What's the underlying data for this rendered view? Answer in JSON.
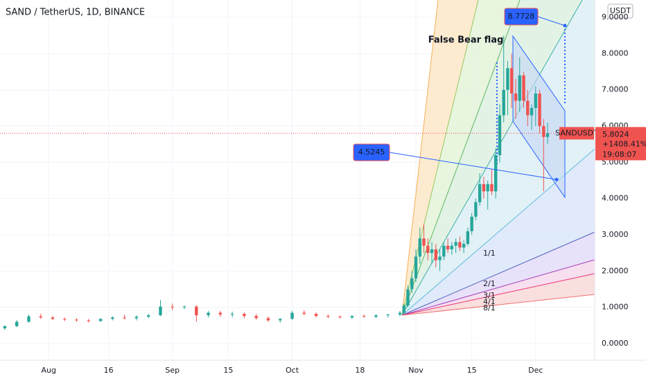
{
  "chart_data": {
    "type": "candlestick",
    "title": "SAND / TetherUS, 1D, BINANCE",
    "currency": "USDT",
    "x": [
      202,
      205,
      208,
      211,
      214,
      217,
      220,
      223,
      226,
      229,
      232,
      235,
      238,
      241,
      244,
      247,
      250,
      253,
      256,
      259,
      262,
      265,
      268,
      271,
      274,
      277,
      280,
      283,
      286,
      289,
      292,
      295,
      298,
      301,
      302,
      303,
      304,
      305,
      306,
      307,
      308,
      309,
      310,
      311,
      312,
      313,
      314,
      315,
      316,
      317,
      318,
      319,
      320,
      321,
      322,
      323,
      324,
      325,
      326,
      327,
      328,
      329,
      330,
      331,
      332,
      333,
      334,
      335,
      336,
      337,
      338
    ],
    "open": [
      0.42,
      0.48,
      0.6,
      0.75,
      0.72,
      0.68,
      0.66,
      0.64,
      0.62,
      0.68,
      0.72,
      0.7,
      0.74,
      0.78,
      1.02,
      1.0,
      1.02,
      0.78,
      0.85,
      0.8,
      0.82,
      0.76,
      0.7,
      0.64,
      0.68,
      0.85,
      0.82,
      0.76,
      0.74,
      0.72,
      0.76,
      0.74,
      0.78,
      0.8,
      0.85,
      1.05,
      1.5,
      1.8,
      2.4,
      2.9,
      2.7,
      2.5,
      2.6,
      2.3,
      2.4,
      2.7,
      2.6,
      2.7,
      2.8,
      2.65,
      2.75,
      3.1,
      3.5,
      3.9,
      4.4,
      4.2,
      4.4,
      4.2,
      5.2,
      6.3,
      7.0,
      7.6,
      6.9,
      6.7,
      7.4,
      6.7,
      6.3,
      6.5,
      6.9,
      6.0,
      5.7
    ],
    "high": [
      0.5,
      0.65,
      0.8,
      0.82,
      0.76,
      0.72,
      0.7,
      0.68,
      0.7,
      0.75,
      0.8,
      0.78,
      0.82,
      1.2,
      1.1,
      1.05,
      1.06,
      0.9,
      0.9,
      0.88,
      0.86,
      0.82,
      0.75,
      0.7,
      0.9,
      0.92,
      0.86,
      0.8,
      0.78,
      0.78,
      0.8,
      0.8,
      0.82,
      0.9,
      1.1,
      1.6,
      2.0,
      2.6,
      3.2,
      3.3,
      2.9,
      2.8,
      2.75,
      2.6,
      2.8,
      2.9,
      2.8,
      2.9,
      2.95,
      2.85,
      3.2,
      3.6,
      4.0,
      4.7,
      4.6,
      4.5,
      4.8,
      5.4,
      6.6,
      8.5,
      7.8,
      8.0,
      7.3,
      7.9,
      7.5,
      7.0,
      6.6,
      7.1,
      7.0,
      6.2,
      6.1
    ],
    "low": [
      0.38,
      0.45,
      0.58,
      0.68,
      0.65,
      0.62,
      0.6,
      0.58,
      0.6,
      0.64,
      0.66,
      0.64,
      0.7,
      0.76,
      0.92,
      0.95,
      0.6,
      0.72,
      0.74,
      0.72,
      0.7,
      0.66,
      0.6,
      0.58,
      0.66,
      0.78,
      0.72,
      0.7,
      0.7,
      0.68,
      0.72,
      0.7,
      0.72,
      0.75,
      0.82,
      1.0,
      1.4,
      1.7,
      2.2,
      2.5,
      2.3,
      2.2,
      2.1,
      2.0,
      2.3,
      2.5,
      2.45,
      2.5,
      2.55,
      2.5,
      2.7,
      3.0,
      3.4,
      3.8,
      4.0,
      3.7,
      4.1,
      4.0,
      5.0,
      6.1,
      6.3,
      6.5,
      6.2,
      6.4,
      6.5,
      6.0,
      5.9,
      6.0,
      5.8,
      4.2,
      5.5
    ],
    "close": [
      0.48,
      0.6,
      0.75,
      0.72,
      0.68,
      0.66,
      0.64,
      0.62,
      0.68,
      0.72,
      0.7,
      0.74,
      0.78,
      1.02,
      1.0,
      1.02,
      0.78,
      0.85,
      0.8,
      0.82,
      0.76,
      0.7,
      0.64,
      0.68,
      0.85,
      0.82,
      0.76,
      0.74,
      0.72,
      0.76,
      0.74,
      0.78,
      0.8,
      0.85,
      1.05,
      1.5,
      1.8,
      2.4,
      2.9,
      2.7,
      2.5,
      2.6,
      2.3,
      2.4,
      2.7,
      2.6,
      2.7,
      2.8,
      2.65,
      2.75,
      3.1,
      3.5,
      3.9,
      4.4,
      4.2,
      4.4,
      4.2,
      5.2,
      6.3,
      7.0,
      7.6,
      6.9,
      6.7,
      7.4,
      6.7,
      6.3,
      6.5,
      6.9,
      6.0,
      5.7,
      5.8024
    ],
    "up_color": "#26a69a",
    "down_color": "#ef5350",
    "xlim": [
      200.8,
      349.8
    ],
    "ylim": [
      -0.46,
      9.48
    ],
    "xticks": [
      {
        "value": 213,
        "label": "Aug"
      },
      {
        "value": 228,
        "label": "16"
      },
      {
        "value": 244,
        "label": "Sep"
      },
      {
        "value": 258,
        "label": "15"
      },
      {
        "value": 274,
        "label": "Oct"
      },
      {
        "value": 291,
        "label": "18"
      },
      {
        "value": 305,
        "label": "Nov"
      },
      {
        "value": 319,
        "label": "15"
      },
      {
        "value": 335,
        "label": "Dec"
      }
    ],
    "yticks": [
      {
        "value": 0,
        "label": "0.0000"
      },
      {
        "value": 1,
        "label": "1.0000"
      },
      {
        "value": 2,
        "label": "2.0000"
      },
      {
        "value": 3,
        "label": "3.0000"
      },
      {
        "value": 4,
        "label": "4.0000"
      },
      {
        "value": 5,
        "label": "5.0000"
      },
      {
        "value": 6,
        "label": "6.0000"
      },
      {
        "value": 7,
        "label": "7.0000"
      },
      {
        "value": 8,
        "label": "8.0000"
      },
      {
        "value": 9,
        "label": "9.0000"
      }
    ],
    "last_price": 5.8024,
    "symbol_label": "SANDUSDT",
    "change": "+1408.41%",
    "countdown": "19:08:07",
    "note": "False Bear flag",
    "price_notes": [
      8.7728,
      4.5245
    ],
    "fan_labels": [
      "1/1",
      "2/1",
      "3/1",
      "4/1",
      "8/1"
    ]
  }
}
